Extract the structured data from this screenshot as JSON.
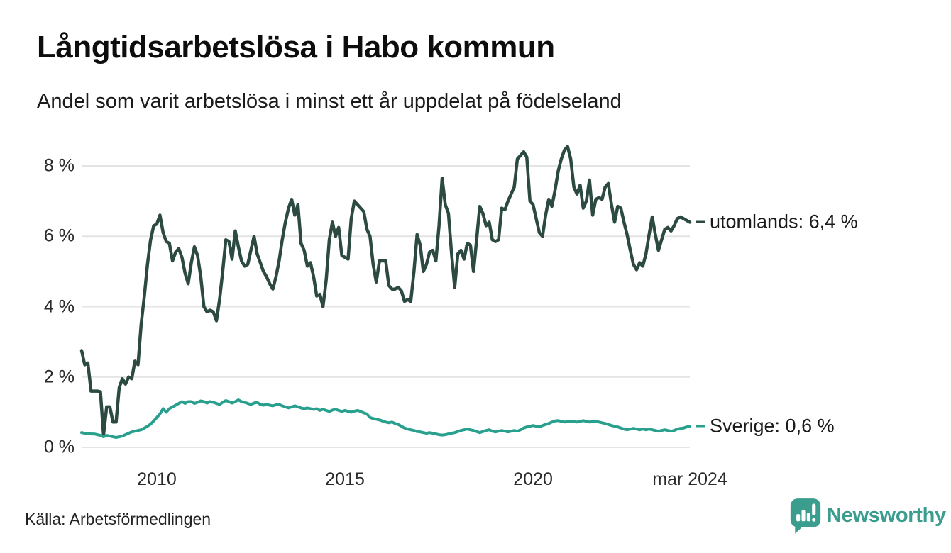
{
  "header": {
    "title": "Långtidsarbetslösa i Habo kommun",
    "subtitle": "Andel som varit arbetslösa i minst ett år uppdelat på födelseland"
  },
  "footer": {
    "source": "Källa: Arbetsförmedlingen",
    "logo_text": "Newsworthy",
    "logo_color": "#3a9d8e"
  },
  "chart_data": {
    "type": "line",
    "title": "Långtidsarbetslösa i Habo kommun",
    "subtitle": "Andel som varit arbetslösa i minst ett år uppdelat på födelseland",
    "unit": "%",
    "x_unit": "month",
    "x_range": [
      "2008-01",
      "2024-03"
    ],
    "ylim": [
      0,
      8.8
    ],
    "grid": "horizontal",
    "grid_color": "#e4e4e4",
    "y_ticks": [
      {
        "label": "0 %",
        "value": 0
      },
      {
        "label": "2 %",
        "value": 2
      },
      {
        "label": "4 %",
        "value": 4
      },
      {
        "label": "6 %",
        "value": 6
      },
      {
        "label": "8 %",
        "value": 8
      }
    ],
    "x_ticks": [
      {
        "label": "2010",
        "month_index": 24
      },
      {
        "label": "2015",
        "month_index": 84
      },
      {
        "label": "2020",
        "month_index": 144
      },
      {
        "label": "mar 2024",
        "month_index": 194
      }
    ],
    "series": [
      {
        "name": "utomlands",
        "color": "#2c4a42",
        "stroke_width": 4.5,
        "end_label": "utomlands: 6,4 %",
        "last_value_label": "6,4 %",
        "values": [
          2.75,
          2.35,
          2.4,
          1.6,
          1.6,
          1.6,
          1.58,
          0.35,
          1.15,
          1.15,
          0.72,
          0.72,
          1.7,
          1.95,
          1.8,
          2.0,
          1.95,
          2.45,
          2.35,
          3.5,
          4.3,
          5.2,
          5.9,
          6.3,
          6.35,
          6.6,
          6.1,
          5.85,
          5.8,
          5.3,
          5.55,
          5.65,
          5.4,
          4.95,
          4.65,
          5.25,
          5.7,
          5.45,
          4.85,
          4.0,
          3.85,
          3.9,
          3.85,
          3.6,
          4.2,
          5.0,
          5.9,
          5.85,
          5.35,
          6.15,
          5.7,
          5.3,
          5.15,
          5.2,
          5.6,
          6.0,
          5.5,
          5.25,
          5.0,
          4.85,
          4.65,
          4.5,
          4.85,
          5.3,
          5.9,
          6.4,
          6.8,
          7.05,
          6.6,
          6.9,
          5.8,
          5.6,
          5.15,
          5.25,
          4.85,
          4.3,
          4.35,
          4.0,
          4.75,
          5.9,
          6.4,
          6.0,
          6.25,
          5.45,
          5.4,
          5.35,
          6.5,
          7.0,
          6.9,
          6.8,
          6.7,
          6.2,
          6.0,
          5.2,
          4.7,
          5.3,
          5.3,
          5.3,
          4.6,
          4.5,
          4.5,
          4.55,
          4.45,
          4.15,
          4.2,
          4.15,
          5.0,
          6.05,
          5.75,
          5.0,
          5.2,
          5.55,
          5.6,
          5.3,
          6.3,
          7.65,
          6.9,
          6.65,
          5.5,
          4.55,
          5.5,
          5.6,
          5.35,
          5.8,
          5.75,
          5.0,
          5.9,
          6.85,
          6.65,
          6.3,
          6.4,
          5.9,
          5.85,
          5.9,
          6.8,
          6.75,
          7.0,
          7.2,
          7.4,
          8.2,
          8.3,
          8.4,
          8.25,
          7.0,
          6.9,
          6.5,
          6.1,
          6.0,
          6.6,
          7.05,
          6.85,
          7.3,
          7.85,
          8.2,
          8.45,
          8.55,
          8.2,
          7.4,
          7.2,
          7.45,
          6.8,
          7.0,
          7.6,
          6.6,
          7.05,
          7.1,
          7.05,
          7.4,
          7.5,
          6.9,
          6.4,
          6.85,
          6.8,
          6.4,
          6.05,
          5.6,
          5.2,
          5.05,
          5.25,
          5.15,
          5.5,
          6.05,
          6.55,
          6.05,
          5.6,
          5.9,
          6.2,
          6.25,
          6.15,
          6.3,
          6.5,
          6.55,
          6.5,
          6.45,
          6.4
        ]
      },
      {
        "name": "Sverige",
        "color": "#29a08d",
        "stroke_width": 4,
        "end_label": "Sverige: 0,6 %",
        "last_value_label": "0,6 %",
        "values": [
          0.42,
          0.4,
          0.4,
          0.38,
          0.38,
          0.36,
          0.34,
          0.3,
          0.34,
          0.32,
          0.3,
          0.28,
          0.3,
          0.32,
          0.36,
          0.4,
          0.44,
          0.46,
          0.48,
          0.5,
          0.55,
          0.6,
          0.66,
          0.75,
          0.85,
          0.95,
          1.1,
          1.0,
          1.1,
          1.15,
          1.2,
          1.25,
          1.3,
          1.25,
          1.3,
          1.3,
          1.25,
          1.28,
          1.32,
          1.3,
          1.26,
          1.3,
          1.28,
          1.25,
          1.22,
          1.28,
          1.33,
          1.3,
          1.26,
          1.3,
          1.35,
          1.3,
          1.28,
          1.25,
          1.22,
          1.26,
          1.28,
          1.22,
          1.2,
          1.22,
          1.2,
          1.18,
          1.21,
          1.22,
          1.18,
          1.15,
          1.12,
          1.15,
          1.18,
          1.15,
          1.12,
          1.1,
          1.12,
          1.1,
          1.08,
          1.1,
          1.05,
          1.08,
          1.05,
          1.02,
          1.06,
          1.08,
          1.05,
          1.02,
          1.05,
          1.02,
          1.0,
          1.03,
          1.05,
          1.02,
          0.98,
          0.95,
          0.85,
          0.82,
          0.8,
          0.78,
          0.75,
          0.72,
          0.7,
          0.72,
          0.68,
          0.65,
          0.6,
          0.55,
          0.52,
          0.5,
          0.48,
          0.45,
          0.44,
          0.42,
          0.4,
          0.42,
          0.4,
          0.38,
          0.36,
          0.35,
          0.36,
          0.38,
          0.4,
          0.42,
          0.45,
          0.48,
          0.5,
          0.52,
          0.5,
          0.48,
          0.45,
          0.42,
          0.45,
          0.48,
          0.5,
          0.46,
          0.44,
          0.46,
          0.48,
          0.46,
          0.44,
          0.46,
          0.48,
          0.46,
          0.5,
          0.55,
          0.58,
          0.6,
          0.62,
          0.6,
          0.58,
          0.62,
          0.65,
          0.68,
          0.72,
          0.75,
          0.76,
          0.74,
          0.72,
          0.73,
          0.75,
          0.73,
          0.72,
          0.74,
          0.76,
          0.74,
          0.72,
          0.73,
          0.74,
          0.72,
          0.7,
          0.68,
          0.65,
          0.62,
          0.6,
          0.58,
          0.55,
          0.52,
          0.5,
          0.52,
          0.54,
          0.52,
          0.5,
          0.52,
          0.5,
          0.52,
          0.5,
          0.48,
          0.46,
          0.48,
          0.5,
          0.48,
          0.46,
          0.48,
          0.52,
          0.54,
          0.55,
          0.58,
          0.6
        ]
      }
    ]
  }
}
